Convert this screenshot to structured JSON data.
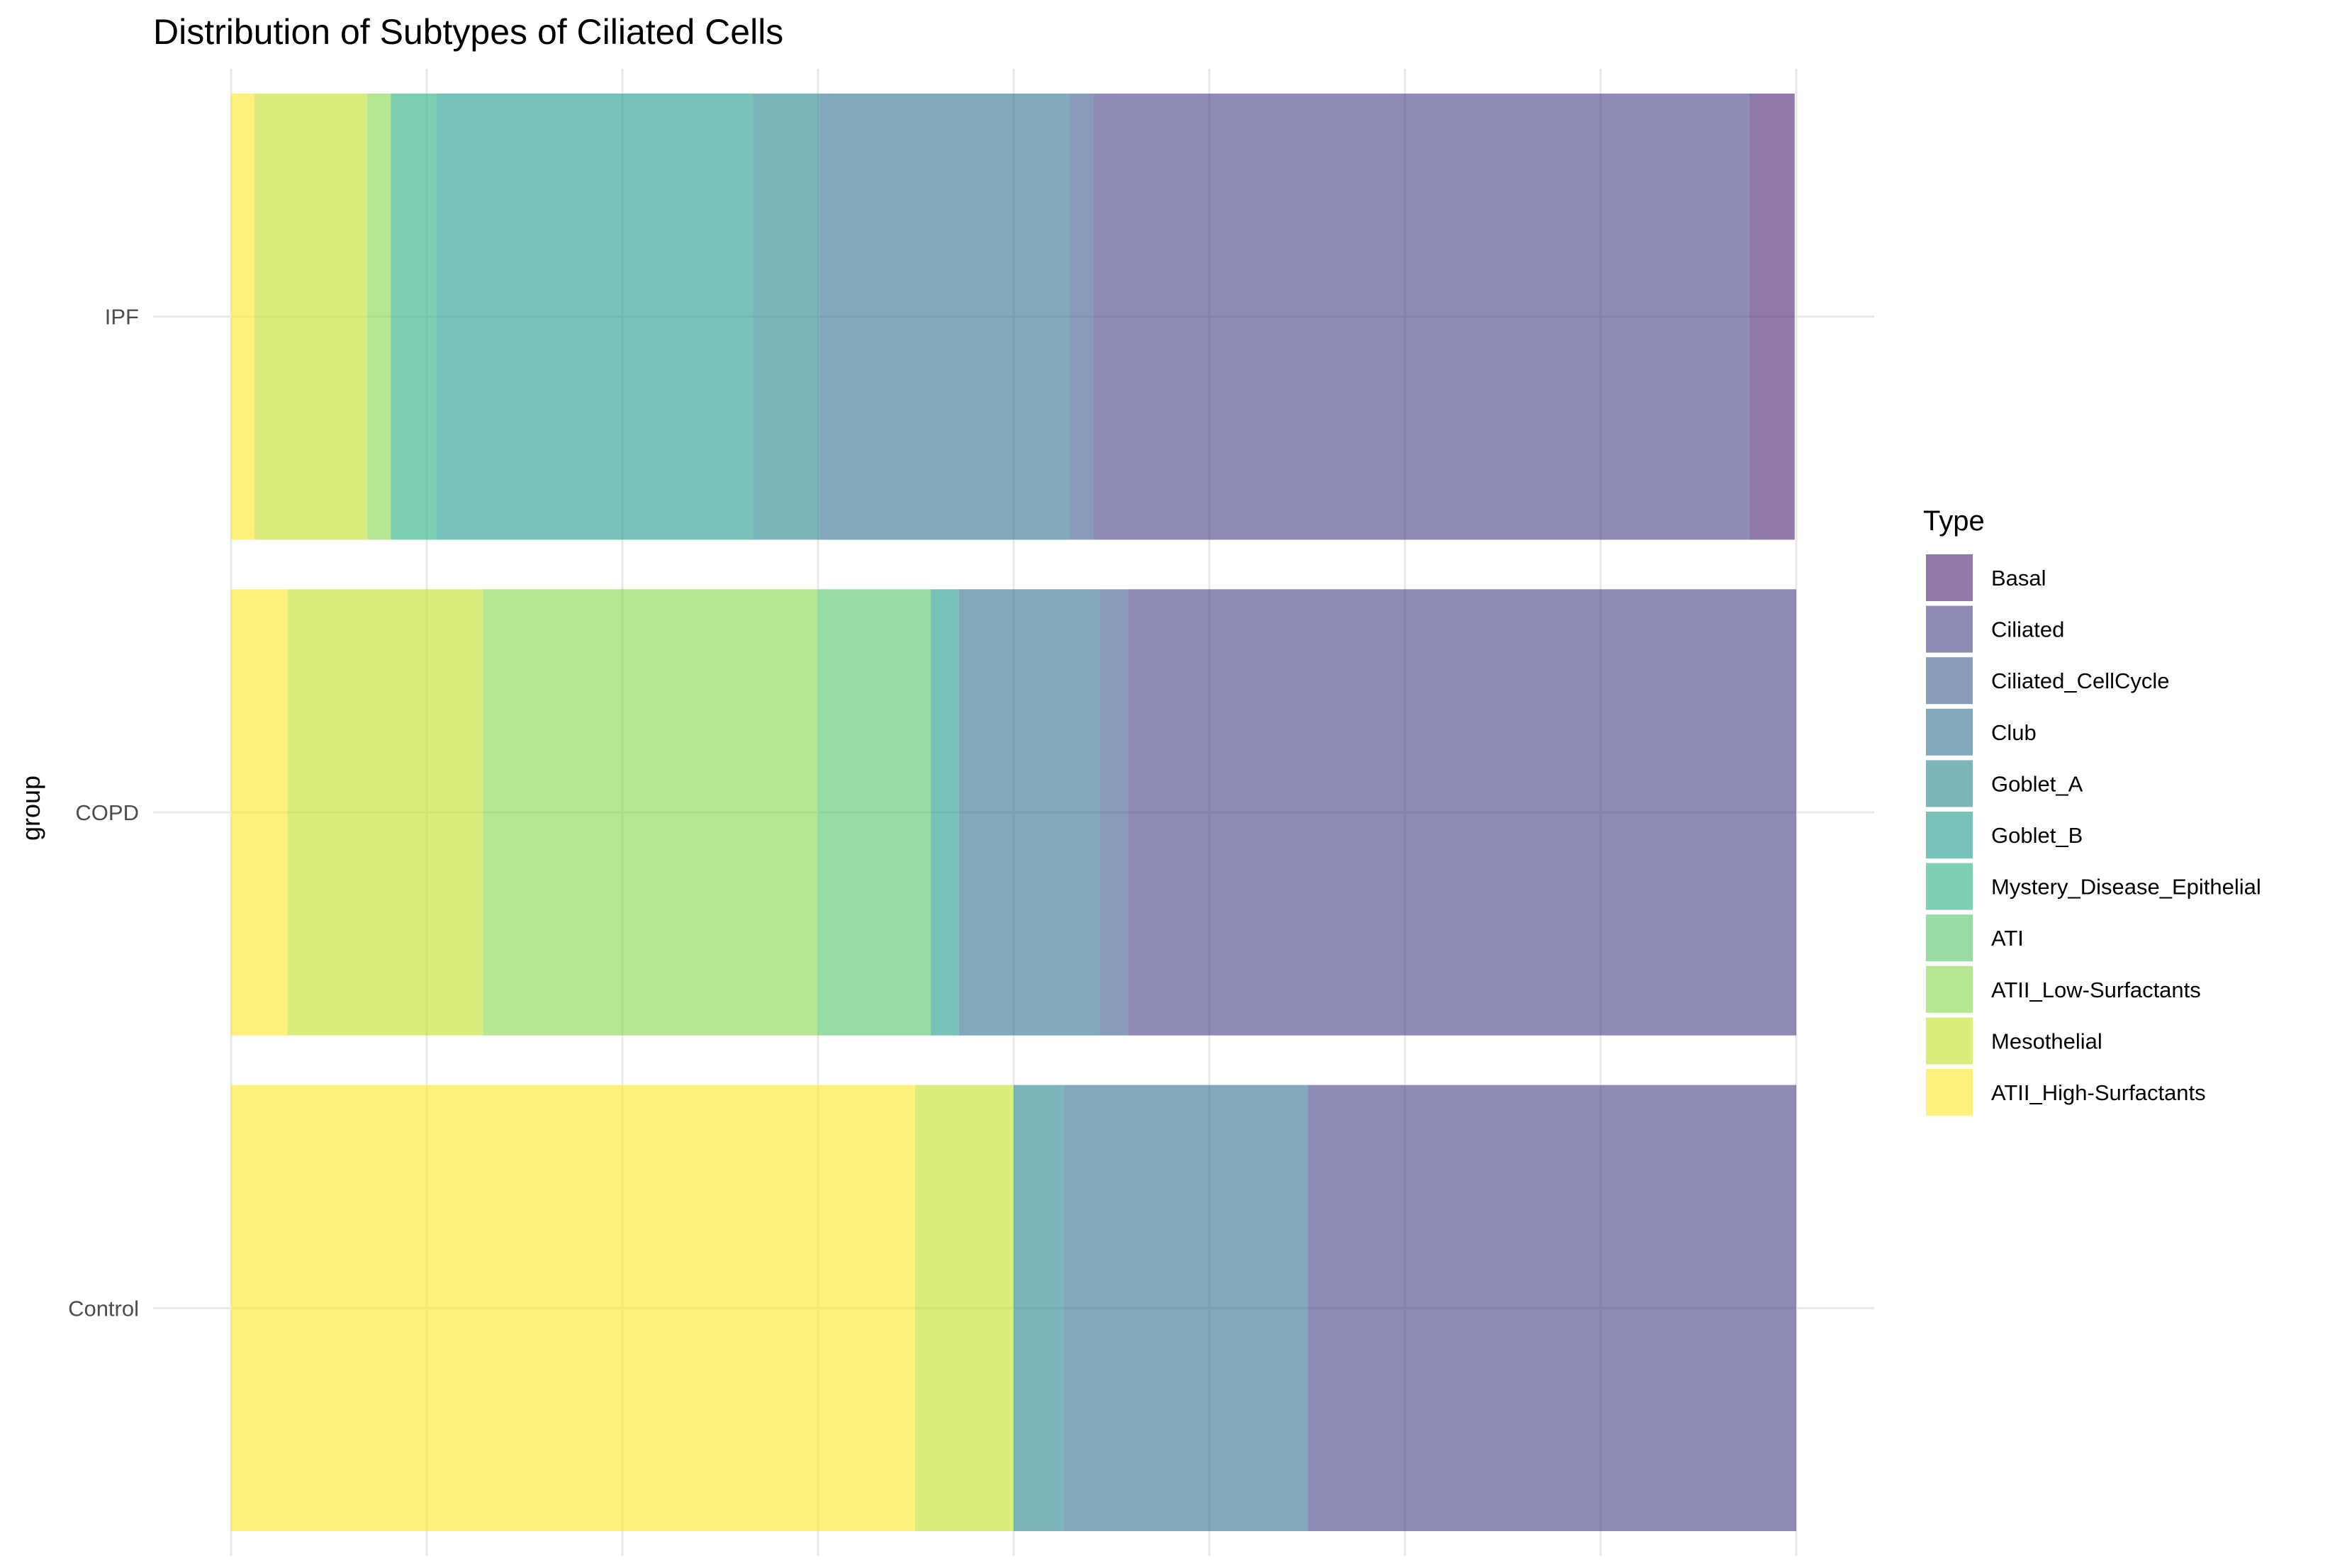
{
  "chart_data": {
    "type": "bar",
    "orientation": "horizontal",
    "stacked": true,
    "normalized": true,
    "title": "Distribution of Subtypes of Ciliated Cells",
    "xlabel": "",
    "ylabel": "group",
    "xlim": [
      0,
      1
    ],
    "grid": true,
    "legend_title": "Type",
    "legend_position": "right",
    "categories": [
      "IPF",
      "COPD",
      "Control"
    ],
    "series": [
      {
        "name": "ATII_High-Surfactants",
        "color": "#FDE725",
        "values": [
          0.015,
          0.036,
          0.437
        ]
      },
      {
        "name": "Mesothelial",
        "color": "#C2DF23",
        "values": [
          0.072,
          0.125,
          0.063
        ]
      },
      {
        "name": "ATII_Low-Surfactants",
        "color": "#86D549",
        "values": [
          0.015,
          0.214,
          0
        ]
      },
      {
        "name": "ATI",
        "color": "#52C569",
        "values": [
          0,
          0.072,
          0
        ]
      },
      {
        "name": "Mystery_Disease_Epithelial",
        "color": "#2AB07F",
        "values": [
          0.029,
          0,
          0
        ]
      },
      {
        "name": "Goblet_B",
        "color": "#1E9B8A",
        "values": [
          0.202,
          0.018,
          0
        ]
      },
      {
        "name": "Goblet_A",
        "color": "#25858E",
        "values": [
          0.043,
          0,
          0.032
        ]
      },
      {
        "name": "Club",
        "color": "#2D708E",
        "values": [
          0.16,
          0.09,
          0.156
        ]
      },
      {
        "name": "Ciliated_CellCycle",
        "color": "#38598C",
        "values": [
          0.015,
          0.018,
          0
        ]
      },
      {
        "name": "Ciliated",
        "color": "#433E85",
        "values": [
          0.419,
          0.427,
          0.312
        ]
      },
      {
        "name": "Basal",
        "color": "#482173",
        "values": [
          0.029,
          0,
          0
        ]
      }
    ],
    "legend_order": [
      "Basal",
      "Ciliated",
      "Ciliated_CellCycle",
      "Club",
      "Goblet_A",
      "Goblet_B",
      "Mystery_Disease_Epithelial",
      "ATI",
      "ATII_Low-Surfactants",
      "Mesothelial",
      "ATII_High-Surfactants"
    ],
    "bar_opacity": 0.6
  }
}
